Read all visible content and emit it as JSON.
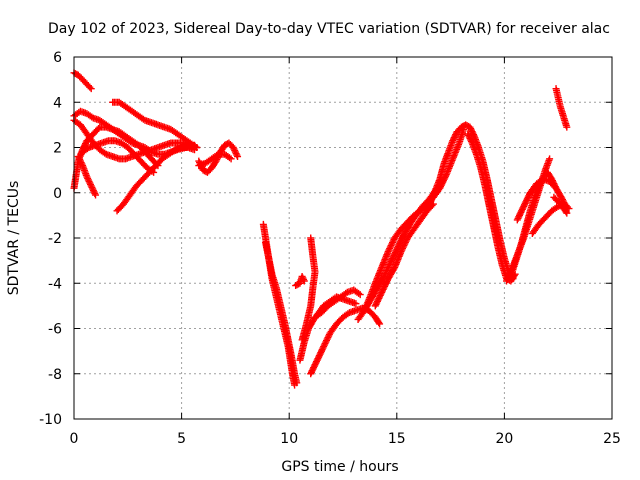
{
  "chart_data": {
    "type": "scatter",
    "title": "Day 102 of 2023, Sidereal Day-to-day VTEC variation (SDTVAR) for receiver alac",
    "xlabel": "GPS time / hours",
    "ylabel": "SDTVAR / TECUs",
    "xlim": [
      0,
      25
    ],
    "ylim": [
      -10,
      6
    ],
    "xticks": [
      0,
      5,
      10,
      15,
      20,
      25
    ],
    "yticks": [
      -10,
      -8,
      -6,
      -4,
      -2,
      0,
      2,
      4,
      6
    ],
    "grid": true,
    "marker": "+",
    "color": "#ff0000",
    "series": [
      {
        "points": [
          [
            0.0,
            5.3
          ],
          [
            0.2,
            5.2
          ],
          [
            0.4,
            5.0
          ],
          [
            0.6,
            4.8
          ],
          [
            0.8,
            4.6
          ]
        ]
      },
      {
        "points": [
          [
            0.0,
            3.4
          ],
          [
            0.3,
            3.6
          ],
          [
            0.6,
            3.5
          ],
          [
            0.9,
            3.3
          ],
          [
            1.2,
            3.2
          ],
          [
            1.5,
            3.0
          ],
          [
            1.8,
            2.8
          ],
          [
            2.1,
            2.6
          ],
          [
            2.4,
            2.4
          ],
          [
            2.7,
            2.2
          ],
          [
            3.0,
            2.1
          ],
          [
            3.3,
            2.0
          ],
          [
            3.6,
            1.8
          ],
          [
            3.9,
            1.7
          ],
          [
            4.2,
            1.7
          ],
          [
            4.5,
            1.8
          ],
          [
            4.8,
            1.9
          ],
          [
            5.2,
            2.0
          ],
          [
            5.6,
            2.1
          ]
        ]
      },
      {
        "points": [
          [
            0.0,
            3.2
          ],
          [
            0.3,
            3.0
          ],
          [
            0.6,
            2.6
          ],
          [
            0.9,
            2.2
          ],
          [
            1.2,
            1.9
          ],
          [
            1.5,
            1.7
          ],
          [
            1.8,
            1.6
          ],
          [
            2.1,
            1.5
          ],
          [
            2.4,
            1.5
          ],
          [
            2.7,
            1.6
          ],
          [
            3.0,
            1.7
          ],
          [
            3.3,
            1.8
          ],
          [
            3.6,
            1.9
          ],
          [
            3.9,
            2.0
          ],
          [
            4.2,
            2.1
          ],
          [
            4.5,
            2.2
          ],
          [
            4.8,
            2.2
          ],
          [
            5.1,
            2.2
          ],
          [
            5.4,
            2.1
          ],
          [
            5.7,
            2.0
          ]
        ]
      },
      {
        "points": [
          [
            0.0,
            0.2
          ],
          [
            0.1,
            0.8
          ],
          [
            0.2,
            1.4
          ],
          [
            0.4,
            1.9
          ],
          [
            0.6,
            2.3
          ],
          [
            0.9,
            2.6
          ],
          [
            1.2,
            2.9
          ],
          [
            1.5,
            2.9
          ],
          [
            1.8,
            2.8
          ],
          [
            2.1,
            2.7
          ],
          [
            2.4,
            2.5
          ],
          [
            2.7,
            2.3
          ],
          [
            3.0,
            2.1
          ],
          [
            3.3,
            1.8
          ],
          [
            3.6,
            1.5
          ],
          [
            3.9,
            1.2
          ]
        ]
      },
      {
        "points": [
          [
            0.2,
            1.6
          ],
          [
            0.4,
            1.2
          ],
          [
            0.6,
            0.7
          ],
          [
            0.8,
            0.3
          ],
          [
            1.0,
            -0.1
          ]
        ]
      },
      {
        "points": [
          [
            0.4,
            1.8
          ],
          [
            0.7,
            2.0
          ],
          [
            1.0,
            2.1
          ],
          [
            1.3,
            2.2
          ],
          [
            1.6,
            2.3
          ],
          [
            1.9,
            2.3
          ],
          [
            2.2,
            2.2
          ],
          [
            2.5,
            2.0
          ],
          [
            2.8,
            1.7
          ],
          [
            3.1,
            1.4
          ],
          [
            3.4,
            1.1
          ],
          [
            3.7,
            0.9
          ]
        ]
      },
      {
        "points": [
          [
            1.8,
            4.0
          ],
          [
            2.1,
            4.0
          ],
          [
            2.4,
            3.8
          ],
          [
            2.7,
            3.6
          ],
          [
            3.0,
            3.4
          ],
          [
            3.3,
            3.2
          ],
          [
            3.6,
            3.1
          ],
          [
            3.9,
            3.0
          ],
          [
            4.2,
            2.9
          ],
          [
            4.5,
            2.8
          ],
          [
            4.8,
            2.6
          ],
          [
            5.1,
            2.4
          ],
          [
            5.4,
            2.2
          ],
          [
            5.7,
            2.0
          ]
        ]
      },
      {
        "points": [
          [
            2.0,
            -0.8
          ],
          [
            2.3,
            -0.5
          ],
          [
            2.6,
            -0.1
          ],
          [
            2.9,
            0.3
          ],
          [
            3.2,
            0.6
          ],
          [
            3.5,
            0.9
          ],
          [
            3.8,
            1.2
          ],
          [
            4.1,
            1.5
          ],
          [
            4.4,
            1.7
          ],
          [
            4.7,
            1.9
          ],
          [
            5.0,
            2.0
          ],
          [
            5.3,
            2.0
          ],
          [
            5.6,
            1.9
          ]
        ]
      },
      {
        "points": [
          [
            5.8,
            1.4
          ],
          [
            6.0,
            1.0
          ],
          [
            6.2,
            0.9
          ],
          [
            6.4,
            1.1
          ],
          [
            6.6,
            1.4
          ],
          [
            6.8,
            1.8
          ],
          [
            7.0,
            2.1
          ],
          [
            7.2,
            2.2
          ],
          [
            7.4,
            2.0
          ],
          [
            7.6,
            1.6
          ]
        ]
      },
      {
        "points": [
          [
            5.8,
            1.2
          ],
          [
            6.1,
            1.3
          ],
          [
            6.4,
            1.5
          ],
          [
            6.7,
            1.7
          ],
          [
            7.0,
            1.7
          ],
          [
            7.3,
            1.5
          ]
        ]
      },
      {
        "points": [
          [
            8.8,
            -1.4
          ],
          [
            8.9,
            -2.0
          ],
          [
            9.0,
            -2.6
          ],
          [
            9.1,
            -3.2
          ],
          [
            9.2,
            -3.8
          ],
          [
            9.35,
            -4.4
          ],
          [
            9.5,
            -5.0
          ],
          [
            9.65,
            -5.6
          ],
          [
            9.8,
            -6.2
          ],
          [
            9.95,
            -6.8
          ],
          [
            10.05,
            -7.4
          ],
          [
            10.15,
            -8.0
          ],
          [
            10.25,
            -8.5
          ]
        ]
      },
      {
        "points": [
          [
            8.9,
            -2.2
          ],
          [
            9.05,
            -2.9
          ],
          [
            9.2,
            -3.6
          ],
          [
            9.4,
            -4.2
          ],
          [
            9.6,
            -5.0
          ],
          [
            9.8,
            -5.8
          ],
          [
            9.95,
            -6.5
          ],
          [
            10.1,
            -7.2
          ],
          [
            10.25,
            -8.0
          ],
          [
            10.35,
            -8.4
          ]
        ]
      },
      {
        "points": [
          [
            10.3,
            -4.1
          ],
          [
            10.5,
            -4.0
          ],
          [
            10.6,
            -3.7
          ],
          [
            10.7,
            -3.9
          ]
        ]
      },
      {
        "points": [
          [
            10.5,
            -7.4
          ],
          [
            10.7,
            -6.6
          ],
          [
            10.9,
            -6.0
          ],
          [
            11.2,
            -5.5
          ],
          [
            11.5,
            -5.3
          ],
          [
            11.8,
            -5.0
          ],
          [
            12.1,
            -4.8
          ],
          [
            12.4,
            -4.6
          ],
          [
            12.7,
            -4.4
          ],
          [
            13.0,
            -4.3
          ],
          [
            13.3,
            -4.5
          ]
        ]
      },
      {
        "points": [
          [
            10.6,
            -6.5
          ],
          [
            10.8,
            -5.8
          ],
          [
            11.0,
            -5.0
          ],
          [
            11.1,
            -4.2
          ],
          [
            11.2,
            -3.5
          ],
          [
            11.1,
            -2.8
          ],
          [
            11.0,
            -2.0
          ]
        ]
      },
      {
        "points": [
          [
            11.0,
            -8.0
          ],
          [
            11.3,
            -7.4
          ],
          [
            11.6,
            -6.8
          ],
          [
            11.9,
            -6.2
          ],
          [
            12.2,
            -5.8
          ],
          [
            12.5,
            -5.5
          ],
          [
            12.8,
            -5.3
          ],
          [
            13.1,
            -5.2
          ],
          [
            13.4,
            -5.1
          ],
          [
            13.7,
            -5.2
          ],
          [
            14.0,
            -5.5
          ],
          [
            14.2,
            -5.8
          ]
        ]
      },
      {
        "points": [
          [
            11.3,
            -5.4
          ],
          [
            11.6,
            -5.0
          ],
          [
            11.9,
            -4.8
          ],
          [
            12.2,
            -4.6
          ],
          [
            12.5,
            -4.7
          ],
          [
            12.8,
            -4.8
          ],
          [
            13.1,
            -4.9
          ]
        ]
      },
      {
        "points": [
          [
            13.2,
            -5.6
          ],
          [
            13.5,
            -5.2
          ],
          [
            13.8,
            -4.7
          ],
          [
            14.1,
            -4.2
          ],
          [
            14.4,
            -3.7
          ],
          [
            14.7,
            -3.1
          ],
          [
            15.0,
            -2.5
          ],
          [
            15.3,
            -1.9
          ],
          [
            15.6,
            -1.4
          ],
          [
            15.9,
            -1.0
          ],
          [
            16.2,
            -0.6
          ],
          [
            16.5,
            -0.3
          ],
          [
            16.8,
            0.1
          ],
          [
            17.1,
            0.5
          ]
        ]
      },
      {
        "points": [
          [
            13.5,
            -5.2
          ],
          [
            13.8,
            -4.5
          ],
          [
            14.0,
            -4.0
          ],
          [
            14.3,
            -3.3
          ],
          [
            14.6,
            -2.6
          ],
          [
            14.9,
            -2.0
          ],
          [
            15.2,
            -1.6
          ],
          [
            15.5,
            -1.3
          ],
          [
            15.8,
            -1.0
          ],
          [
            16.1,
            -0.8
          ],
          [
            16.4,
            -0.5
          ],
          [
            16.7,
            -0.2
          ],
          [
            17.0,
            0.2
          ],
          [
            17.3,
            0.8
          ],
          [
            17.6,
            1.5
          ],
          [
            17.9,
            2.2
          ],
          [
            18.1,
            2.8
          ]
        ]
      },
      {
        "points": [
          [
            14.0,
            -5.0
          ],
          [
            14.3,
            -4.4
          ],
          [
            14.6,
            -3.8
          ],
          [
            14.9,
            -3.3
          ],
          [
            15.2,
            -2.6
          ],
          [
            15.5,
            -2.0
          ],
          [
            15.8,
            -1.6
          ],
          [
            16.1,
            -1.2
          ],
          [
            16.4,
            -0.8
          ],
          [
            16.7,
            -0.5
          ]
        ]
      },
      {
        "points": [
          [
            16.4,
            -0.8
          ],
          [
            16.7,
            -0.1
          ],
          [
            17.0,
            0.6
          ],
          [
            17.2,
            1.3
          ],
          [
            17.4,
            1.8
          ],
          [
            17.6,
            2.3
          ],
          [
            17.8,
            2.7
          ],
          [
            18.0,
            2.9
          ],
          [
            18.2,
            3.0
          ],
          [
            18.4,
            2.9
          ],
          [
            18.6,
            2.5
          ],
          [
            18.8,
            2.0
          ],
          [
            19.0,
            1.4
          ],
          [
            19.2,
            0.6
          ],
          [
            19.4,
            -0.3
          ],
          [
            19.6,
            -1.2
          ],
          [
            19.8,
            -2.1
          ],
          [
            20.0,
            -2.9
          ],
          [
            20.2,
            -3.5
          ],
          [
            20.4,
            -3.8
          ]
        ]
      },
      {
        "points": [
          [
            18.3,
            2.6
          ],
          [
            18.5,
            2.2
          ],
          [
            18.7,
            1.7
          ],
          [
            18.9,
            1.1
          ],
          [
            19.1,
            0.3
          ],
          [
            19.3,
            -0.6
          ],
          [
            19.5,
            -1.5
          ],
          [
            19.7,
            -2.4
          ],
          [
            19.9,
            -3.2
          ],
          [
            20.1,
            -3.8
          ],
          [
            20.3,
            -3.9
          ],
          [
            20.5,
            -3.6
          ]
        ]
      },
      {
        "points": [
          [
            20.1,
            -3.9
          ],
          [
            20.3,
            -3.5
          ],
          [
            20.5,
            -3.0
          ],
          [
            20.7,
            -2.5
          ],
          [
            20.9,
            -2.0
          ],
          [
            21.1,
            -1.4
          ],
          [
            21.3,
            -0.8
          ],
          [
            21.5,
            -0.2
          ],
          [
            21.7,
            0.4
          ],
          [
            21.9,
            1.0
          ],
          [
            22.1,
            1.5
          ]
        ]
      },
      {
        "points": [
          [
            20.4,
            -3.4
          ],
          [
            20.6,
            -2.8
          ],
          [
            20.8,
            -2.2
          ],
          [
            21.0,
            -1.5
          ],
          [
            21.2,
            -0.8
          ],
          [
            21.4,
            -0.2
          ],
          [
            21.6,
            0.3
          ],
          [
            21.8,
            0.7
          ],
          [
            22.0,
            0.9
          ],
          [
            22.2,
            0.6
          ],
          [
            22.4,
            0.2
          ]
        ]
      },
      {
        "points": [
          [
            20.6,
            -1.2
          ],
          [
            20.9,
            -0.6
          ],
          [
            21.2,
            0.0
          ],
          [
            21.5,
            0.4
          ],
          [
            21.8,
            0.6
          ],
          [
            22.1,
            0.5
          ],
          [
            22.4,
            0.2
          ],
          [
            22.7,
            -0.3
          ],
          [
            22.9,
            -0.7
          ]
        ]
      },
      {
        "points": [
          [
            21.3,
            -1.8
          ],
          [
            21.6,
            -1.4
          ],
          [
            21.9,
            -1.1
          ],
          [
            22.2,
            -0.8
          ],
          [
            22.5,
            -0.6
          ],
          [
            22.8,
            -0.5
          ],
          [
            23.0,
            -0.7
          ]
        ]
      },
      {
        "points": [
          [
            22.3,
            -0.2
          ],
          [
            22.5,
            -0.4
          ],
          [
            22.7,
            -0.6
          ],
          [
            22.9,
            -0.9
          ]
        ]
      },
      {
        "points": [
          [
            22.4,
            4.6
          ],
          [
            22.5,
            4.2
          ],
          [
            22.6,
            3.8
          ],
          [
            22.7,
            3.5
          ],
          [
            22.8,
            3.2
          ],
          [
            22.9,
            2.9
          ]
        ]
      }
    ]
  }
}
